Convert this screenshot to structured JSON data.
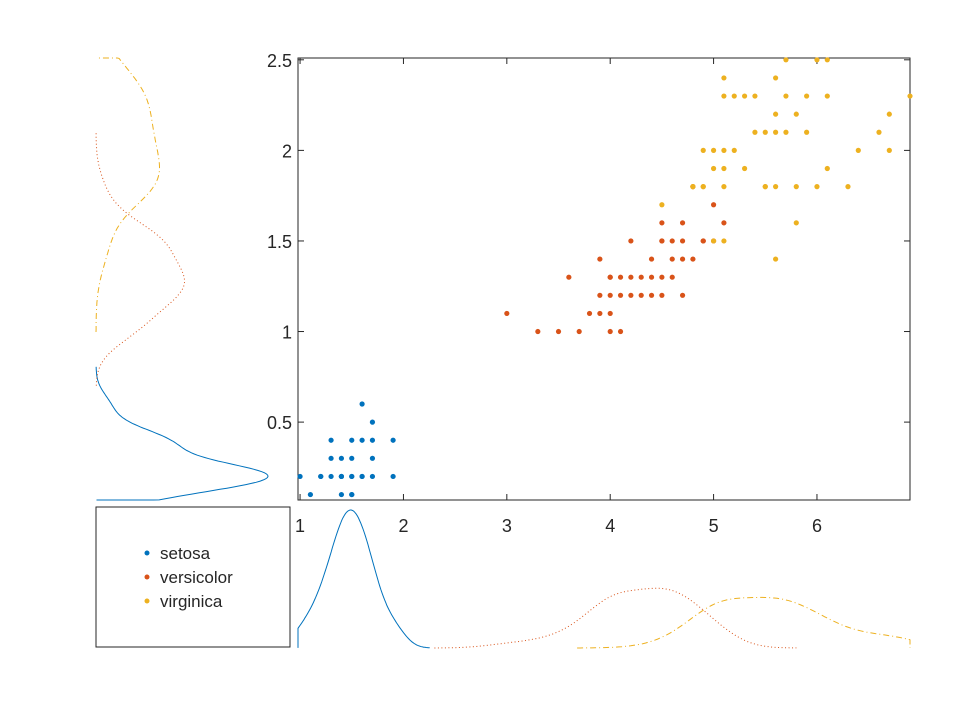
{
  "chart_data": {
    "type": "scatter",
    "title": "",
    "xlabel": "",
    "ylabel": "",
    "xlim": [
      0.98,
      6.9
    ],
    "ylim": [
      0.07,
      2.51
    ],
    "x_ticks": [
      1,
      2,
      3,
      4,
      5,
      6
    ],
    "x_tick_labels": [
      "1",
      "2",
      "3",
      "4",
      "5",
      "6"
    ],
    "y_ticks": [
      0.5,
      1,
      1.5,
      2,
      2.5
    ],
    "y_tick_labels": [
      "0.5",
      "1",
      "1.5",
      "2",
      "2.5"
    ],
    "grid": false,
    "legend_position": "bottom-left",
    "marginal_kde_x": "bottom",
    "marginal_kde_y": "left",
    "series": [
      {
        "name": "setosa",
        "color": "#0072BD",
        "line_style": "solid",
        "x": [
          1.0,
          1.1,
          1.2,
          1.3,
          1.3,
          1.3,
          1.4,
          1.4,
          1.4,
          1.4,
          1.5,
          1.5,
          1.5,
          1.5,
          1.5,
          1.6,
          1.6,
          1.6,
          1.6,
          1.7,
          1.7,
          1.7,
          1.7,
          1.9,
          1.9,
          1.2,
          1.4,
          1.5
        ],
        "y": [
          0.2,
          0.1,
          0.2,
          0.2,
          0.3,
          0.4,
          0.1,
          0.2,
          0.3,
          0.2,
          0.1,
          0.2,
          0.3,
          0.4,
          0.2,
          0.2,
          0.4,
          0.6,
          0.2,
          0.2,
          0.3,
          0.4,
          0.5,
          0.2,
          0.4,
          0.2,
          0.2,
          0.1
        ]
      },
      {
        "name": "versicolor",
        "color": "#D95319",
        "line_style": "dotted",
        "x": [
          3.0,
          3.3,
          3.5,
          3.6,
          3.7,
          3.8,
          3.9,
          3.9,
          3.9,
          4.0,
          4.0,
          4.0,
          4.0,
          4.1,
          4.1,
          4.1,
          4.2,
          4.2,
          4.2,
          4.3,
          4.3,
          4.4,
          4.4,
          4.4,
          4.5,
          4.5,
          4.5,
          4.5,
          4.6,
          4.6,
          4.6,
          4.7,
          4.7,
          4.7,
          4.7,
          4.8,
          4.8,
          4.9,
          4.9,
          5.0,
          5.0,
          5.1,
          4.0,
          4.5
        ],
        "y": [
          1.1,
          1.0,
          1.0,
          1.3,
          1.0,
          1.1,
          1.1,
          1.2,
          1.4,
          1.0,
          1.2,
          1.3,
          1.1,
          1.0,
          1.3,
          1.2,
          1.3,
          1.5,
          1.2,
          1.3,
          1.2,
          1.2,
          1.3,
          1.4,
          1.3,
          1.5,
          1.6,
          1.2,
          1.3,
          1.4,
          1.5,
          1.2,
          1.4,
          1.5,
          1.6,
          1.4,
          1.8,
          1.5,
          1.5,
          1.7,
          1.5,
          1.6,
          1.3,
          1.5
        ]
      },
      {
        "name": "virginica",
        "color": "#EDB120",
        "line_style": "dashdot",
        "x": [
          4.5,
          4.8,
          4.8,
          4.9,
          4.9,
          5.0,
          5.0,
          5.0,
          5.1,
          5.1,
          5.1,
          5.1,
          5.1,
          5.2,
          5.2,
          5.3,
          5.3,
          5.4,
          5.4,
          5.5,
          5.5,
          5.5,
          5.6,
          5.6,
          5.6,
          5.6,
          5.7,
          5.7,
          5.7,
          5.8,
          5.8,
          5.8,
          5.9,
          5.9,
          6.0,
          6.0,
          6.1,
          6.1,
          6.1,
          6.3,
          6.4,
          6.6,
          6.7,
          6.7,
          6.9,
          4.9,
          5.1,
          5.6
        ],
        "y": [
          1.7,
          1.8,
          1.8,
          1.8,
          2.0,
          1.5,
          1.9,
          2.0,
          1.5,
          1.8,
          1.9,
          2.3,
          2.4,
          2.0,
          2.3,
          1.9,
          2.3,
          2.1,
          2.3,
          1.8,
          2.1,
          1.8,
          1.4,
          1.8,
          2.1,
          2.4,
          2.1,
          2.3,
          2.5,
          1.6,
          1.8,
          2.2,
          2.1,
          2.3,
          1.8,
          2.5,
          1.9,
          2.3,
          2.5,
          1.8,
          2.0,
          2.1,
          2.2,
          2.0,
          2.3,
          1.8,
          2.0,
          2.2
        ]
      }
    ]
  }
}
